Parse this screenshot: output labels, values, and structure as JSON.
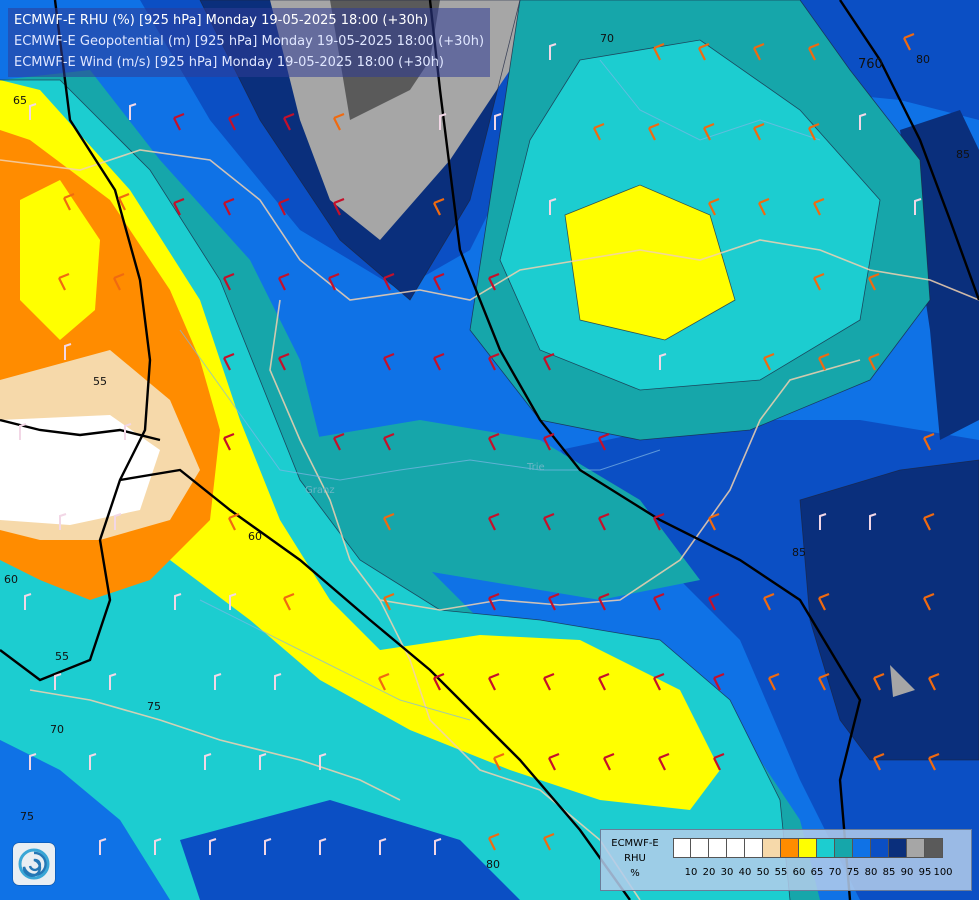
{
  "header": {
    "line1": "ECMWF-E RHU (%) [925 hPa] Monday 19-05-2025 18:00 (+30h)",
    "line2": "ECMWF-E Geopotential (m) [925 hPa] Monday 19-05-2025 18:00 (+30h)",
    "line3": "ECMWF-E Wind (m/s) [925 hPa] Monday 19-05-2025 18:00 (+30h)"
  },
  "contour_labels": [
    "65",
    "55",
    "60",
    "55",
    "70",
    "75",
    "75",
    "60",
    "70",
    "80",
    "85",
    "85",
    "80",
    "760"
  ],
  "place_labels": [
    "Granz",
    "Trie"
  ],
  "legend": {
    "line1": "ECMWF-E",
    "line2": "RHU",
    "line3": "%",
    "levels": [
      "10",
      "20",
      "30",
      "40",
      "50",
      "55",
      "60",
      "65",
      "70",
      "75",
      "80",
      "85",
      "90",
      "95",
      "100"
    ],
    "colors": [
      "#ffffff",
      "#ffffff",
      "#ffffff",
      "#ffffff",
      "#ffffff",
      "#f6d9aa",
      "#ff8c00",
      "#ffff00",
      "#1ccdd0",
      "#16a6aa",
      "#0f72e6",
      "#0b4fc4",
      "#0a2f7c",
      "#a6a6a6",
      "#5a5a5a"
    ]
  },
  "colors": {
    "rh_50": "#ffffff",
    "rh_55": "#f6d9aa",
    "rh_60": "#ff8c00",
    "rh_65": "#ffff00",
    "rh_70": "#1ccdd0",
    "rh_75": "#16a6aa",
    "rh_80": "#0f72e6",
    "rh_85": "#0b4fc4",
    "rh_90": "#0a2f7c",
    "rh_95": "#a6a6a6",
    "rh_100": "#5a5a5a"
  },
  "icons": {
    "logo": "ecmwf-swirl-logo"
  }
}
